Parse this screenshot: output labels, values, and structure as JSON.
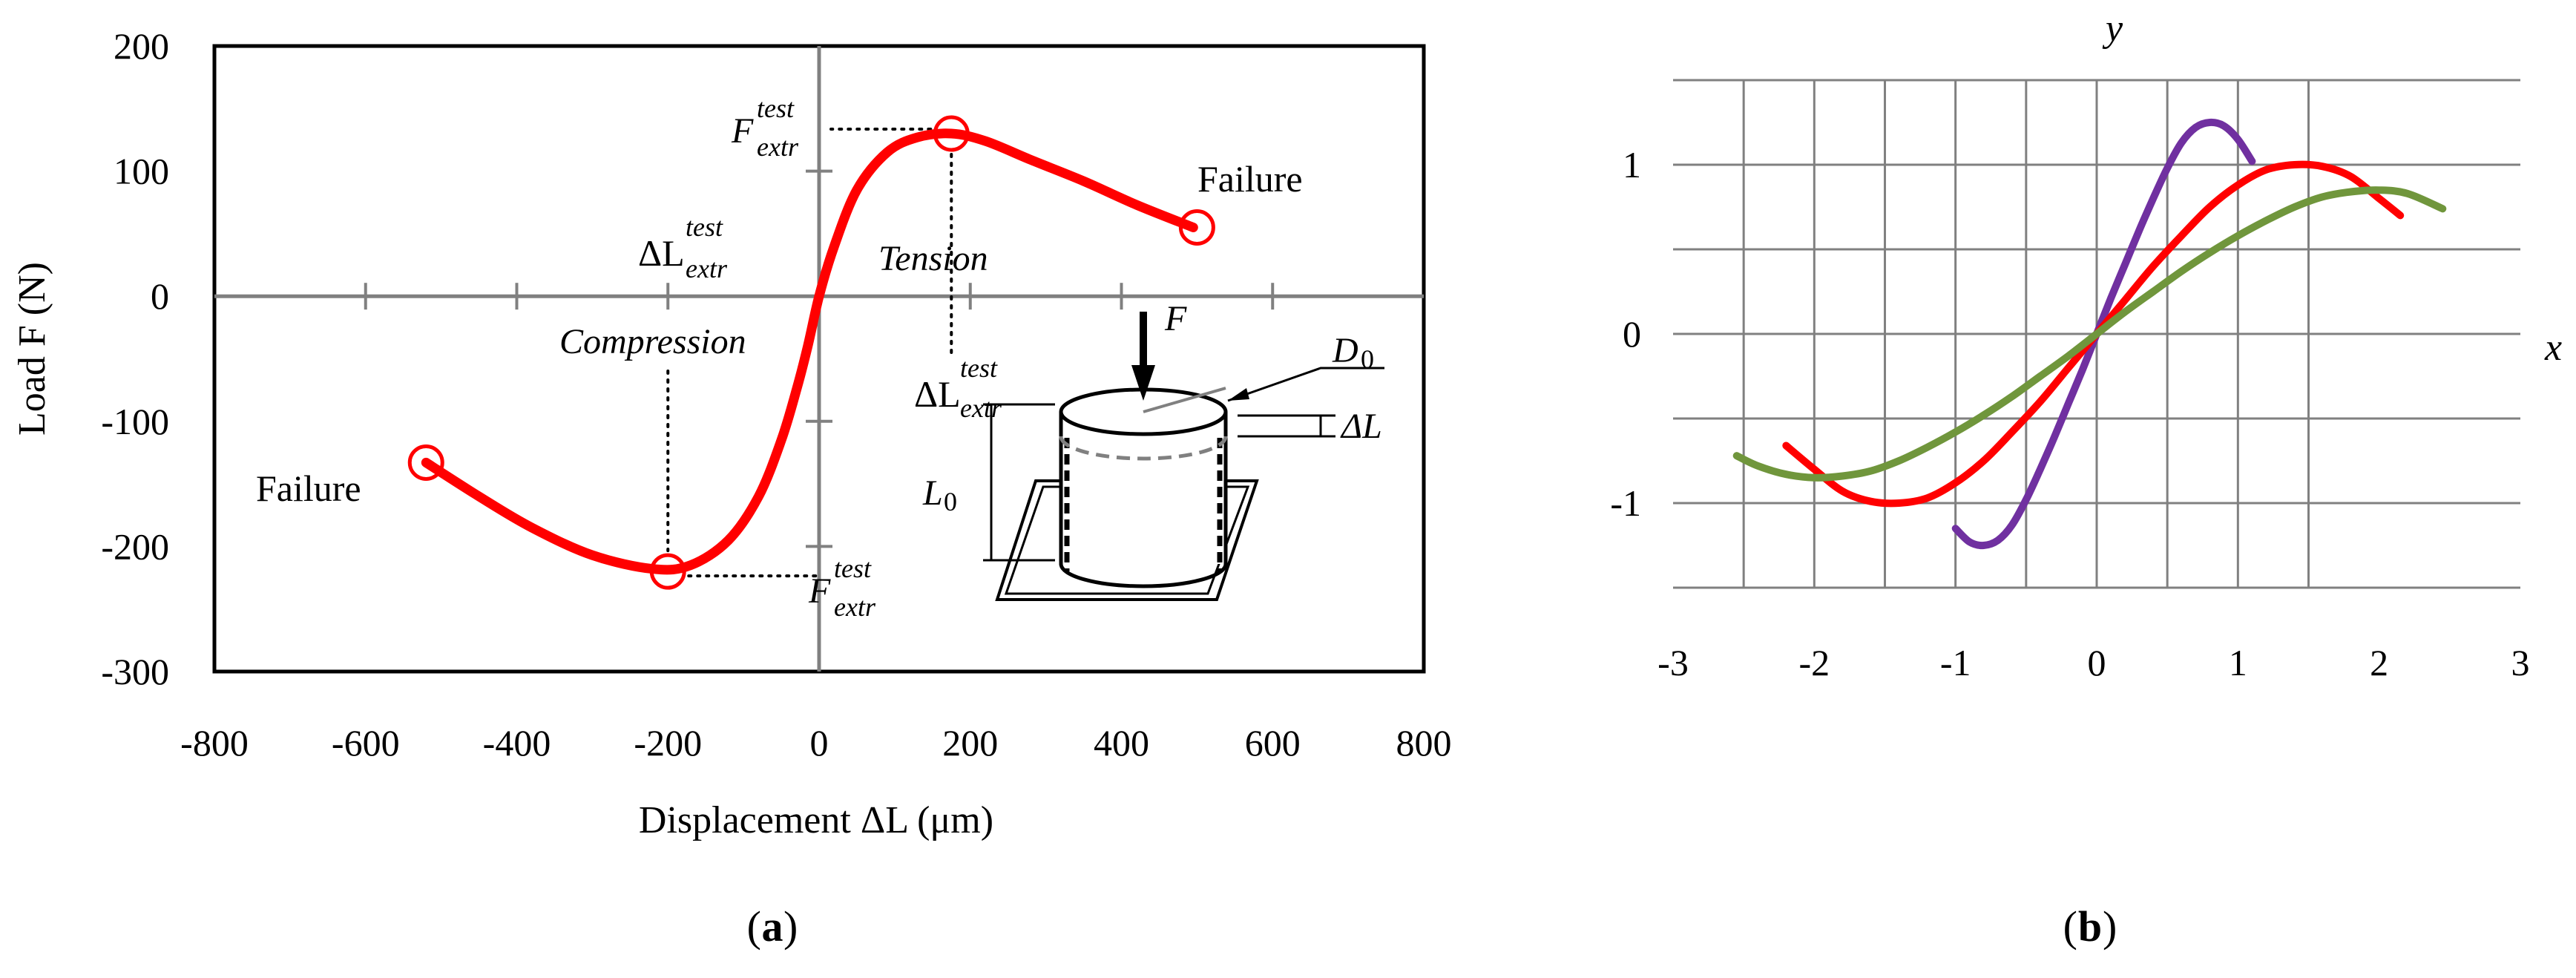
{
  "chart_data": [
    {
      "panel": "(a)",
      "panel_letter": "a",
      "type": "line",
      "xlabel": "Displacement ΔL (μm)",
      "ylabel": "Load F (N)",
      "xlim": [
        -800,
        800
      ],
      "ylim": [
        -300,
        200
      ],
      "x_ticks": [
        "-800",
        "-600",
        "-400",
        "-200",
        "0",
        "200",
        "400",
        "600",
        "800"
      ],
      "y_ticks": [
        "200",
        "100",
        "0",
        "-100",
        "-200",
        "-300"
      ],
      "grid": false,
      "series": [
        {
          "color": "#ff0000",
          "x": [
            -520,
            -450,
            -380,
            -300,
            -220,
            -170,
            -120,
            -80,
            -50,
            -30,
            -15,
            0,
            20,
            50,
            90,
            130,
            175,
            220,
            280,
            350,
            420,
            495
          ],
          "y": [
            -133,
            -160,
            -185,
            -207,
            -218,
            -215,
            -195,
            -160,
            -115,
            -75,
            -40,
            0,
            40,
            85,
            115,
            127,
            130,
            124,
            109,
            92,
            73,
            55
          ]
        }
      ],
      "markers": [
        {
          "x": -520,
          "y": -133
        },
        {
          "x": -200,
          "y": -220
        },
        {
          "x": 175,
          "y": 130
        },
        {
          "x": 500,
          "y": 55
        }
      ],
      "annotations": {
        "failure_left": "Failure",
        "failure_right": "Failure",
        "compression": "Compression",
        "tension": "Tension",
        "F_base": "F",
        "F_sup": "test",
        "F_sub": "extr",
        "dL_base": "ΔL",
        "dL_sup": "test",
        "dL_sub": "extr",
        "inset_F": "F",
        "inset_D": "D",
        "inset_D_sub": "0",
        "inset_L": "L",
        "inset_L_sub": "0",
        "inset_dL": "ΔL"
      }
    },
    {
      "panel": "(b)",
      "panel_letter": "b",
      "type": "line",
      "xlabel": "x",
      "ylabel": "y",
      "xlim": [
        -3,
        3
      ],
      "ylim": [
        -1.5,
        1.5
      ],
      "x_ticks": [
        "-3",
        "-2",
        "-1",
        "0",
        "1",
        "2",
        "3"
      ],
      "y_ticks": [
        "1",
        "0",
        "-1"
      ],
      "grid": true,
      "series": [
        {
          "color": "#7030a0",
          "x": [
            -1.0,
            -0.9,
            -0.8,
            -0.7,
            -0.6,
            -0.5,
            -0.4,
            -0.3,
            -0.2,
            -0.1,
            0.0,
            0.1,
            0.2,
            0.3,
            0.4,
            0.5,
            0.6,
            0.7,
            0.8,
            0.9,
            1.0,
            1.1
          ],
          "y": [
            -1.15,
            -1.23,
            -1.25,
            -1.22,
            -1.13,
            -0.98,
            -0.8,
            -0.61,
            -0.41,
            -0.21,
            0.0,
            0.21,
            0.41,
            0.61,
            0.8,
            0.98,
            1.13,
            1.22,
            1.25,
            1.23,
            1.15,
            1.02
          ]
        },
        {
          "color": "#ff0000",
          "x": [
            -2.2,
            -2.0,
            -1.8,
            -1.6,
            -1.4,
            -1.2,
            -1.0,
            -0.8,
            -0.6,
            -0.4,
            -0.2,
            0.0,
            0.2,
            0.4,
            0.6,
            0.8,
            1.0,
            1.2,
            1.4,
            1.6,
            1.8,
            2.0,
            2.15
          ],
          "y": [
            -0.66,
            -0.8,
            -0.93,
            -0.99,
            -1.0,
            -0.97,
            -0.88,
            -0.75,
            -0.58,
            -0.4,
            -0.2,
            0.0,
            0.2,
            0.4,
            0.58,
            0.75,
            0.88,
            0.97,
            1.0,
            0.99,
            0.93,
            0.8,
            0.7
          ]
        },
        {
          "color": "#70963c",
          "x": [
            -2.55,
            -2.4,
            -2.2,
            -2.0,
            -1.8,
            -1.6,
            -1.4,
            -1.2,
            -1.0,
            -0.8,
            -0.6,
            -0.4,
            -0.2,
            0.0,
            0.2,
            0.4,
            0.6,
            0.8,
            1.0,
            1.2,
            1.4,
            1.6,
            1.8,
            2.0,
            2.2,
            2.45
          ],
          "y": [
            -0.72,
            -0.78,
            -0.83,
            -0.85,
            -0.84,
            -0.81,
            -0.75,
            -0.67,
            -0.58,
            -0.48,
            -0.37,
            -0.25,
            -0.13,
            0.0,
            0.13,
            0.25,
            0.37,
            0.48,
            0.58,
            0.67,
            0.75,
            0.81,
            0.84,
            0.85,
            0.83,
            0.74
          ]
        }
      ]
    }
  ]
}
